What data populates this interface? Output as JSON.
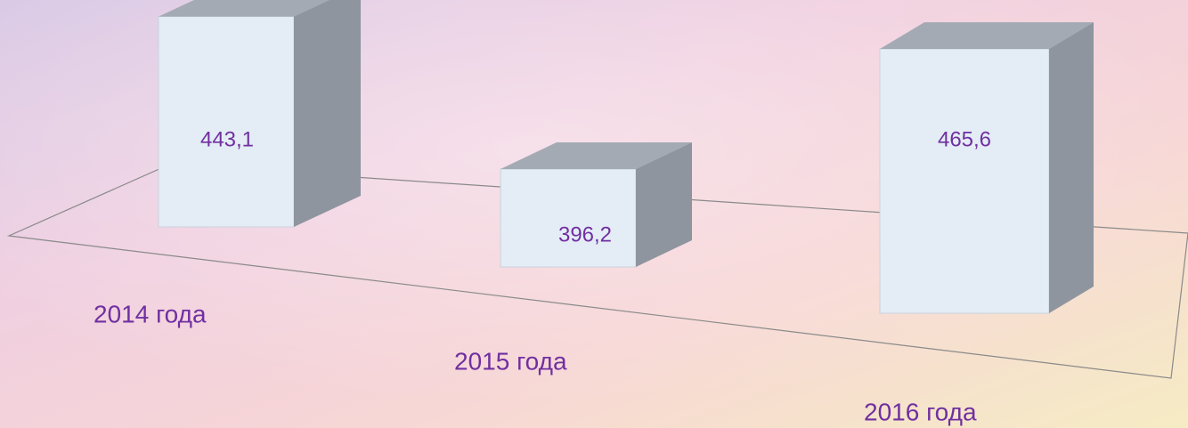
{
  "chart_data": {
    "type": "bar3d",
    "categories": [
      "2014 года",
      "2015 года",
      "2016 года"
    ],
    "values": [
      443.1,
      396.2,
      465.6
    ],
    "value_labels": [
      "443,1",
      "396,2",
      "465,6"
    ],
    "color": "#e4ecf5"
  }
}
